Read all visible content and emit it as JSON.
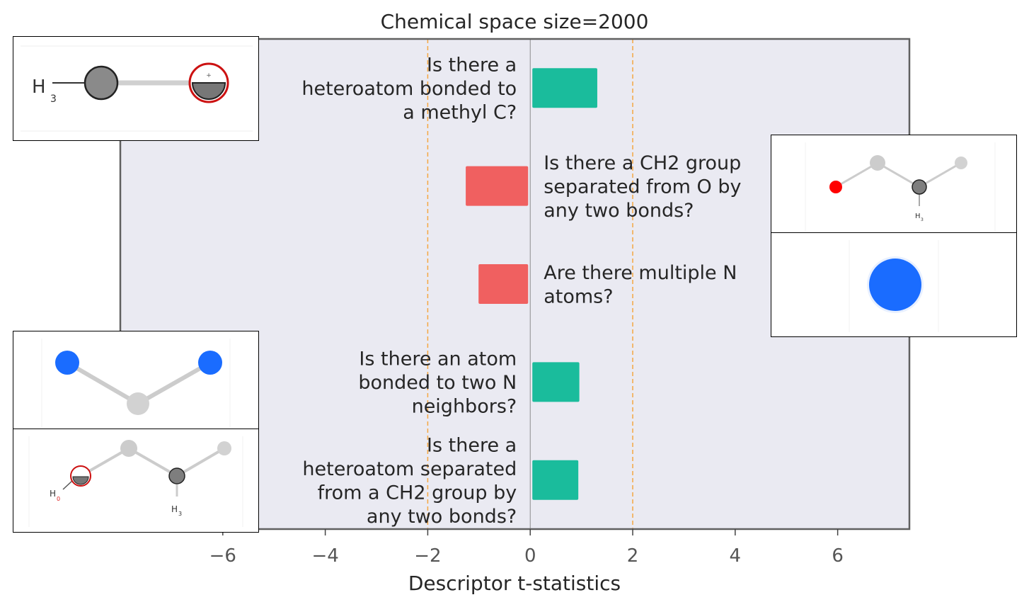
{
  "chart_data": {
    "type": "bar",
    "orientation": "horizontal",
    "title": "Chemical space size=2000",
    "xlabel": "Descriptor t-statistics",
    "ylabel": "",
    "xlim": [
      -8.0,
      7.4
    ],
    "xticks": [
      -6,
      -4,
      -2,
      0,
      2,
      4,
      6
    ],
    "xtick_labels": [
      "−6",
      "−4",
      "−2",
      "0",
      "2",
      "4",
      "6"
    ],
    "threshold_lines": [
      -2,
      2
    ],
    "grid": false,
    "categories": [
      "Is there a heteroatom bonded to a methyl C?",
      "Is there a CH2 group separated from O by any two bonds?",
      "Are there multiple N atoms?",
      "Is there an atom bonded to two N neighbors?",
      "Is there a heteroatom separated from a CH2 group by any two bonds?"
    ],
    "label_lines": [
      [
        "Is there a",
        "heteroatom bonded to",
        "a methyl C?"
      ],
      [
        "Is there a CH2 group",
        "separated from O by",
        "any two bonds?"
      ],
      [
        "Are there multiple N",
        "atoms?"
      ],
      [
        "Is there an atom",
        "bonded to two N",
        "neighbors?"
      ],
      [
        "Is there a",
        "heteroatom separated",
        "from a CH2 group by",
        "any two bonds?"
      ]
    ],
    "values": [
      1.35,
      -1.3,
      -1.05,
      1.0,
      0.98
    ]
  },
  "colors": {
    "positive": "#1abc9c",
    "negative": "#f06060",
    "background": "#eaeaf2",
    "threshold": "#f5a742",
    "zero_line": "#8c8c8c",
    "frame": "#606060"
  },
  "molecules": {
    "top_left": {
      "h_label": "H",
      "h_sub": "3"
    },
    "bottom_left_2": {
      "h_label": "H",
      "h_sub": "3",
      "h2_label": "H",
      "h2_sub": "0"
    },
    "top_right_1": {
      "h_label": "H",
      "h_sub": "3"
    }
  }
}
